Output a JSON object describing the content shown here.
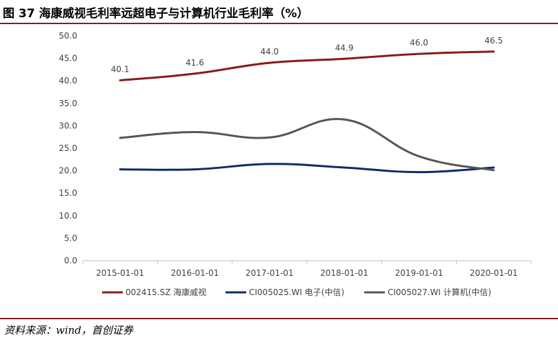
{
  "title": "图 37 海康威视毛利率远超电子与计算机行业毛利率（%）",
  "source": "资料来源：wind，首创证券",
  "colors": {
    "accent": "#8b1a1a"
  },
  "chart_data": {
    "type": "line",
    "categories": [
      "2015-01-01",
      "2016-01-01",
      "2017-01-01",
      "2018-01-01",
      "2019-01-01",
      "2020-01-01"
    ],
    "ylim": [
      0,
      50
    ],
    "ytick_labels": [
      "0.0",
      "5.0",
      "10.0",
      "15.0",
      "20.0",
      "25.0",
      "30.0",
      "35.0",
      "40.0",
      "45.0",
      "50.0"
    ],
    "grid": false,
    "legend_position": "bottom",
    "series": [
      {
        "name": "002415.SZ 海康威视",
        "color": "#8b1a1a",
        "values": [
          40.1,
          41.6,
          44.0,
          44.9,
          46.0,
          46.5
        ],
        "data_labels": [
          "40.1",
          "41.6",
          "44.0",
          "44.9",
          "46.0",
          "46.5"
        ]
      },
      {
        "name": "CI005025.WI 电子(中信)",
        "color": "#0d2a6e",
        "values": [
          20.3,
          20.3,
          21.5,
          20.7,
          19.7,
          20.7
        ]
      },
      {
        "name": "CI005027.WI 计算机(中信)",
        "color": "#555555",
        "values": [
          27.3,
          28.6,
          27.4,
          31.4,
          23.2,
          20.1
        ]
      }
    ]
  }
}
